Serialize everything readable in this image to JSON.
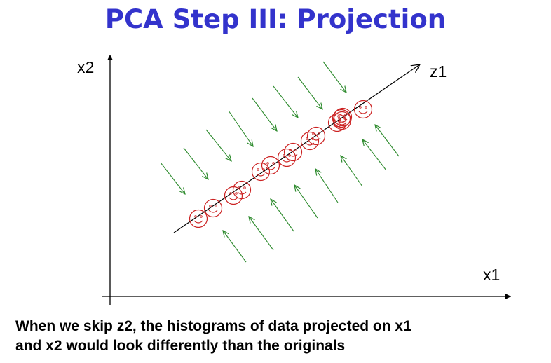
{
  "slide": {
    "title": "PCA Step III: Projection",
    "caption_line1": "When we skip z2, the histograms of data projected on x1",
    "caption_line2": "and x2 would look differently than the originals"
  },
  "axes": {
    "x_label": "x1",
    "y_label": "x2",
    "principal_label": "z1"
  },
  "colors": {
    "title": "#3333cc",
    "axis": "#000000",
    "data_points": "#cc2222",
    "projection_arrows": "#2e8b2e"
  },
  "data_points_count": 15,
  "projection_arrow_groups": [
    "from-above",
    "from-below"
  ]
}
